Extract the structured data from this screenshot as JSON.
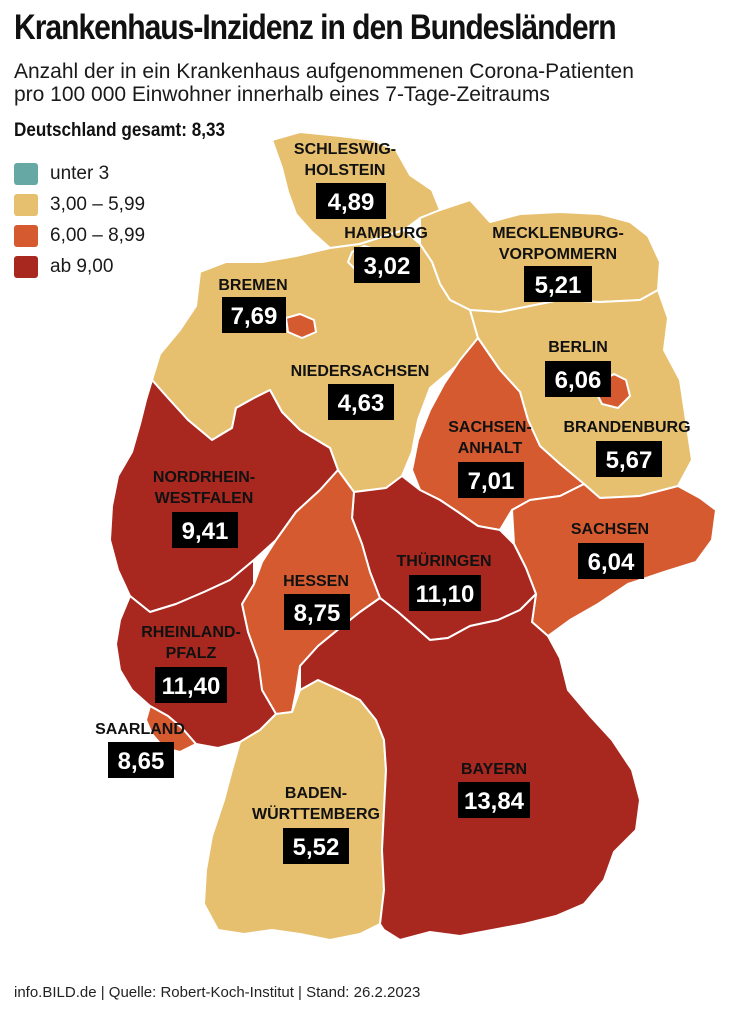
{
  "title": "Krankenhaus-Inzidenz in den Bundesländern",
  "subtitle": "Anzahl der in ein Krankenhaus aufgenommenen Corona-Patienten pro 100 000 Einwohner innerhalb eines 7-Tage-Zeitraums",
  "total": "Deutschland gesamt: 8,33",
  "legend": [
    {
      "label": "unter 3",
      "color": "#66a8a3"
    },
    {
      "label": "3,00 – 5,99",
      "color": "#e6c06f"
    },
    {
      "label": "6,00 – 8,99",
      "color": "#d65a2f"
    },
    {
      "label": "ab 9,00",
      "color": "#a8281f"
    }
  ],
  "states": {
    "sh": {
      "name1": "SCHLESWIG-",
      "name2": "HOLSTEIN",
      "value": "4,89",
      "color": "#e6c06f"
    },
    "hh": {
      "name1": "HAMBURG",
      "value": "3,02",
      "color": "#e6c06f"
    },
    "mv": {
      "name1": "MECKLENBURG-",
      "name2": "VORPOMMERN",
      "value": "5,21",
      "color": "#e6c06f"
    },
    "hb": {
      "name1": "BREMEN",
      "value": "7,69",
      "color": "#d65a2f"
    },
    "ni": {
      "name1": "NIEDERSACHSEN",
      "value": "4,63",
      "color": "#e6c06f"
    },
    "be": {
      "name1": "BERLIN",
      "value": "6,06",
      "color": "#d65a2f"
    },
    "bb": {
      "name1": "BRANDENBURG",
      "value": "5,67",
      "color": "#e6c06f"
    },
    "st": {
      "name1": "SACHSEN-",
      "name2": "ANHALT",
      "value": "7,01",
      "color": "#d65a2f"
    },
    "nw": {
      "name1": "NORDRHEIN-",
      "name2": "WESTFALEN",
      "value": "9,41",
      "color": "#a8281f"
    },
    "sn": {
      "name1": "SACHSEN",
      "value": "6,04",
      "color": "#d65a2f"
    },
    "th": {
      "name1": "THÜRINGEN",
      "value": "11,10",
      "color": "#a8281f"
    },
    "he": {
      "name1": "HESSEN",
      "value": "8,75",
      "color": "#d65a2f"
    },
    "rp": {
      "name1": "RHEINLAND-",
      "name2": "PFALZ",
      "value": "11,40",
      "color": "#a8281f"
    },
    "sl": {
      "name1": "SAARLAND",
      "value": "8,65",
      "color": "#d65a2f"
    },
    "by": {
      "name1": "BAYERN",
      "value": "13,84",
      "color": "#a8281f"
    },
    "bw": {
      "name1": "BADEN-",
      "name2": "WÜRTTEMBERG",
      "value": "5,52",
      "color": "#e6c06f"
    }
  },
  "footer": "info.BILD.de | Quelle: Robert-Koch-Institut | Stand: 26.2.2023"
}
